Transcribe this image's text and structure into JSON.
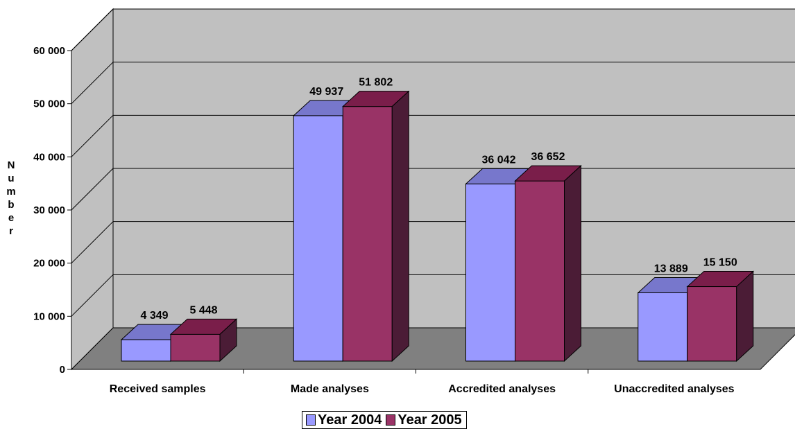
{
  "chart_data": {
    "type": "bar",
    "variant": "3d-clustered-column",
    "title": "",
    "xlabel": "",
    "ylabel": "Number",
    "categories": [
      "Received samples",
      "Made analyses",
      "Accredited analyses",
      "Unaccredited analyses"
    ],
    "series": [
      {
        "name": "Year 2004",
        "values": [
          4349,
          49937,
          36042,
          13889
        ],
        "color": "#9999FF",
        "labels": [
          "4 349",
          "49 937",
          "36 042",
          "13 889"
        ]
      },
      {
        "name": "Year 2005",
        "values": [
          5448,
          51802,
          36652,
          15150
        ],
        "color": "#993366",
        "labels": [
          "5 448",
          "51 802",
          "36 652",
          "15 150"
        ]
      }
    ],
    "ylim": [
      0,
      60000
    ],
    "yticks": [
      0,
      10000,
      20000,
      30000,
      40000,
      50000,
      60000
    ],
    "ytick_labels": [
      "0",
      "10 000",
      "20 000",
      "30 000",
      "40 000",
      "50 000",
      "60 000"
    ],
    "grid": true,
    "legend_position": "bottom",
    "colors": {
      "wall": "#C0C0C0",
      "floor": "#808080",
      "side_wall": "#C0C0C0"
    }
  }
}
